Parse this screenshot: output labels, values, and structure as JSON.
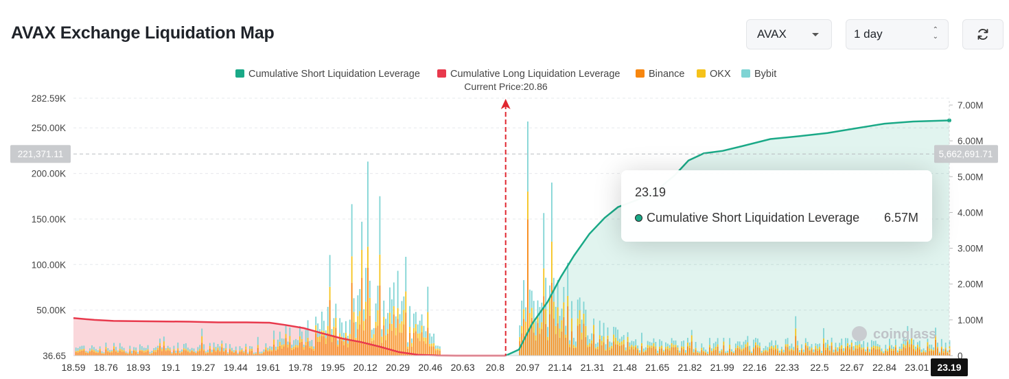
{
  "header": {
    "title": "AVAX Exchange Liquidation Map",
    "coin_select": "AVAX",
    "range_select": "1 day",
    "refresh_icon": "refresh-icon"
  },
  "colors": {
    "short": "#1aa987",
    "long": "#e8394c",
    "binance": "#f7860e",
    "okx": "#f5c21a",
    "bybit": "#7fd4d4"
  },
  "tooltip": {
    "title": "23.19",
    "series": "Cumulative Short Liquidation Leverage",
    "value": "6.57M"
  },
  "watermark": "coinglass",
  "chart_data": {
    "type": "bar",
    "legend": [
      "Cumulative Short Liquidation Leverage",
      "Cumulative Long Liquidation Leverage",
      "Binance",
      "OKX",
      "Bybit"
    ],
    "current_price_label": "Current Price:20.86",
    "current_price": 20.86,
    "x_range": [
      18.59,
      23.19
    ],
    "x_ticks": [
      "18.59",
      "18.76",
      "18.93",
      "19.1",
      "19.27",
      "19.44",
      "19.61",
      "19.78",
      "19.95",
      "20.12",
      "20.29",
      "20.46",
      "20.63",
      "20.8",
      "20.97",
      "21.14",
      "21.31",
      "21.48",
      "21.65",
      "21.82",
      "21.99",
      "22.16",
      "22.33",
      "22.5",
      "22.67",
      "22.84",
      "23.01",
      "23.19"
    ],
    "x_highlight": "23.19",
    "y_left_ticks": [
      "36.65",
      "50.00K",
      "100.00K",
      "150.00K",
      "200.00K",
      "250.00K",
      "282.59K"
    ],
    "y_left_values": [
      0,
      50000,
      100000,
      150000,
      200000,
      250000,
      282590
    ],
    "y_right_ticks": [
      "0",
      "1.00M",
      "2.00M",
      "3.00M",
      "4.00M",
      "5.00M",
      "6.00M",
      "7.00M"
    ],
    "y_right_values": [
      0,
      1000000,
      2000000,
      3000000,
      4000000,
      5000000,
      6000000,
      7000000
    ],
    "crosshair_left_label": "221,371.11",
    "crosshair_left": 221371.11,
    "crosshair_right_label": "5,662,691.71",
    "cumulative_long": {
      "x": [
        18.59,
        18.7,
        18.8,
        18.95,
        19.2,
        19.35,
        19.5,
        19.62,
        19.7,
        19.8,
        19.9,
        20.0,
        20.1,
        20.2,
        20.3,
        20.4,
        20.5,
        20.6,
        20.7,
        20.86
      ],
      "y": [
        1050000,
        1000000,
        970000,
        960000,
        950000,
        930000,
        930000,
        920000,
        860000,
        770000,
        620000,
        480000,
        380000,
        250000,
        100000,
        25000,
        5000,
        0,
        0,
        0
      ]
    },
    "cumulative_short": {
      "x": [
        20.86,
        20.93,
        21.0,
        21.08,
        21.15,
        21.22,
        21.3,
        21.38,
        21.45,
        21.55,
        21.65,
        21.75,
        21.82,
        21.9,
        22.0,
        22.1,
        22.25,
        22.4,
        22.55,
        22.7,
        22.85,
        23.0,
        23.19
      ],
      "y": [
        0,
        170000,
        900000,
        1500000,
        2200000,
        2800000,
        3400000,
        3850000,
        4150000,
        4350000,
        4600000,
        5050000,
        5450000,
        5650000,
        5720000,
        5850000,
        6050000,
        6130000,
        6220000,
        6350000,
        6480000,
        6540000,
        6570000
      ]
    },
    "exchange_bars_peaks": [
      {
        "x": 20.2,
        "bybit": 175000
      },
      {
        "x": 20.97,
        "bybit": 257000
      },
      {
        "x": 21.1,
        "bybit": 190000
      },
      {
        "x": 20.1,
        "bybit": 147000
      }
    ]
  }
}
